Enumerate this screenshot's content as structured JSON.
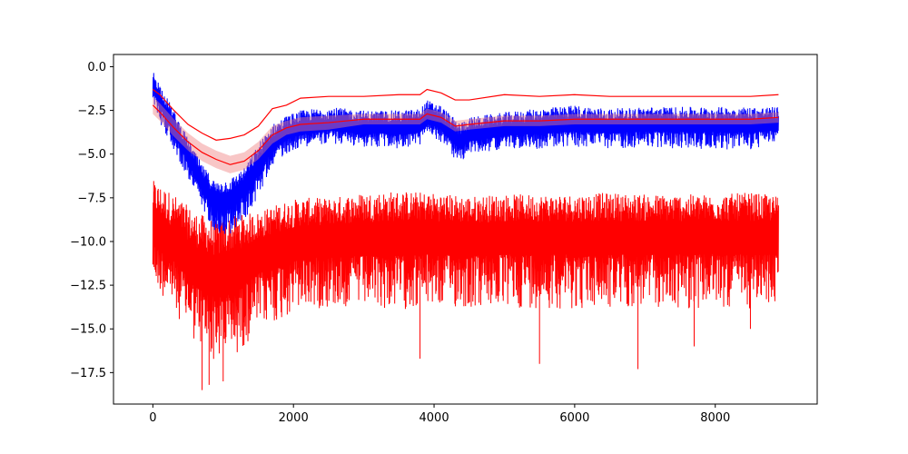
{
  "chart_data": {
    "type": "line",
    "title": "",
    "xlabel": "",
    "ylabel": "",
    "xlim": [
      -560,
      9450
    ],
    "ylim": [
      -19.3,
      0.7
    ],
    "grid": false,
    "legend": "none",
    "x_ticks": [
      0,
      2000,
      4000,
      6000,
      8000
    ],
    "x_tick_labels": [
      "0",
      "2000",
      "4000",
      "6000",
      "8000"
    ],
    "y_ticks": [
      0.0,
      -2.5,
      -5.0,
      -7.5,
      -10.0,
      -12.5,
      -15.0,
      -17.5
    ],
    "y_tick_labels": [
      "0.0",
      "−2.5",
      "−5.0",
      "−7.5",
      "−10.0",
      "−12.5",
      "−15.0",
      "−17.5"
    ],
    "series": [
      {
        "role": "noisy-lower-trace",
        "color": "#ff0000",
        "x": [
          0,
          300,
          600,
          900,
          1200,
          1500,
          1800,
          2100,
          2500,
          3000,
          3500,
          4000,
          4500,
          5000,
          5500,
          6000,
          6500,
          7000,
          7500,
          8000,
          8500,
          8900
        ],
        "center": [
          -9.3,
          -10.2,
          -11.4,
          -12.0,
          -11.6,
          -10.8,
          -10.3,
          -10.0,
          -9.9,
          -9.8,
          -9.8,
          -9.7,
          -9.8,
          -9.7,
          -9.7,
          -9.7,
          -9.7,
          -9.7,
          -9.7,
          -9.7,
          -9.7,
          -9.7
        ],
        "low": [
          -12.5,
          -14.0,
          -15.8,
          -17.0,
          -16.5,
          -15.0,
          -14.6,
          -14.0,
          -13.8,
          -13.9,
          -13.9,
          -13.8,
          -13.9,
          -13.9,
          -13.8,
          -13.9,
          -13.9,
          -13.8,
          -13.9,
          -13.8,
          -13.9,
          -13.6
        ],
        "high": [
          -6.5,
          -7.3,
          -8.3,
          -8.8,
          -8.5,
          -8.3,
          -7.8,
          -7.5,
          -7.5,
          -7.2,
          -7.1,
          -7.2,
          -7.4,
          -7.3,
          -7.3,
          -7.3,
          -7.2,
          -7.3,
          -7.3,
          -7.3,
          -7.2,
          -7.4
        ],
        "spikes": [
          [
            700,
            -18.5
          ],
          [
            800,
            -18.2
          ],
          [
            1000,
            -18.0
          ],
          [
            3800,
            -16.7
          ],
          [
            5500,
            -17.0
          ],
          [
            6900,
            -17.3
          ],
          [
            7700,
            -16.0
          ],
          [
            8500,
            -15.0
          ]
        ]
      },
      {
        "role": "noisy-middle-trace",
        "color": "#0000ff",
        "x": [
          0,
          100,
          300,
          500,
          700,
          900,
          1100,
          1300,
          1500,
          1700,
          1900,
          2100,
          2500,
          3000,
          3500,
          3800,
          3900,
          4100,
          4350,
          4500,
          5000,
          5500,
          6000,
          6500,
          7000,
          7500,
          8000,
          8500,
          8900
        ],
        "center": [
          -1.0,
          -2.0,
          -3.6,
          -5.2,
          -6.8,
          -7.8,
          -7.6,
          -6.9,
          -5.8,
          -4.5,
          -3.9,
          -3.6,
          -3.4,
          -3.5,
          -3.6,
          -3.5,
          -3.0,
          -3.3,
          -4.4,
          -4.0,
          -3.7,
          -3.5,
          -3.4,
          -3.5,
          -3.4,
          -3.4,
          -3.4,
          -3.4,
          -3.4
        ],
        "low": [
          -2.0,
          -3.2,
          -4.8,
          -6.4,
          -8.2,
          -9.5,
          -9.7,
          -8.8,
          -7.5,
          -5.6,
          -5.0,
          -4.6,
          -4.4,
          -4.6,
          -4.7,
          -4.5,
          -4.0,
          -4.3,
          -5.6,
          -5.0,
          -4.7,
          -4.7,
          -4.6,
          -4.7,
          -4.6,
          -4.7,
          -4.7,
          -4.8,
          -4.3
        ],
        "high": [
          -0.2,
          -1.0,
          -2.5,
          -4.1,
          -5.6,
          -6.6,
          -6.4,
          -5.8,
          -4.4,
          -3.3,
          -2.8,
          -2.5,
          -2.3,
          -2.5,
          -2.5,
          -2.4,
          -1.9,
          -2.2,
          -3.2,
          -2.9,
          -2.6,
          -2.4,
          -2.2,
          -2.4,
          -2.3,
          -2.3,
          -2.3,
          -2.3,
          -2.3
        ]
      },
      {
        "role": "upper-envelope",
        "color": "#ff0000",
        "x": [
          0,
          100,
          300,
          500,
          700,
          900,
          1100,
          1300,
          1500,
          1700,
          1900,
          2100,
          2500,
          3000,
          3500,
          3800,
          3900,
          4100,
          4300,
          4500,
          5000,
          5500,
          6000,
          6500,
          7000,
          7500,
          8000,
          8500,
          8900
        ],
        "y": [
          -1.3,
          -1.6,
          -2.5,
          -3.3,
          -3.8,
          -4.2,
          -4.1,
          -3.9,
          -3.4,
          -2.4,
          -2.2,
          -1.8,
          -1.7,
          -1.7,
          -1.6,
          -1.6,
          -1.3,
          -1.5,
          -1.9,
          -1.9,
          -1.6,
          -1.7,
          -1.6,
          -1.7,
          -1.7,
          -1.7,
          -1.7,
          -1.7,
          -1.6
        ]
      },
      {
        "role": "mean-line",
        "color": "#ff0000",
        "fill": "#f08080",
        "x": [
          0,
          100,
          300,
          500,
          700,
          900,
          1100,
          1300,
          1500,
          1700,
          1900,
          2100,
          2500,
          3000,
          3500,
          3800,
          3900,
          4100,
          4300,
          4500,
          5000,
          5500,
          6000,
          6500,
          7000,
          7500,
          8000,
          8500,
          8900
        ],
        "y": [
          -2.2,
          -2.6,
          -3.5,
          -4.3,
          -4.9,
          -5.3,
          -5.6,
          -5.4,
          -4.8,
          -3.9,
          -3.5,
          -3.3,
          -3.2,
          -3.0,
          -3.0,
          -3.0,
          -2.7,
          -2.9,
          -3.4,
          -3.3,
          -3.1,
          -3.1,
          -3.0,
          -3.0,
          -3.0,
          -3.0,
          -3.0,
          -3.0,
          -2.9
        ],
        "band_halfwidth": [
          0.5,
          0.5,
          0.5,
          0.5,
          0.5,
          0.5,
          0.5,
          0.5,
          0.5,
          0.5,
          0.4,
          0.4,
          0.4,
          0.3,
          0.3,
          0.3,
          0.3,
          0.3,
          0.3,
          0.3,
          0.3,
          0.3,
          0.3,
          0.3,
          0.3,
          0.3,
          0.3,
          0.3,
          0.3
        ]
      }
    ]
  }
}
